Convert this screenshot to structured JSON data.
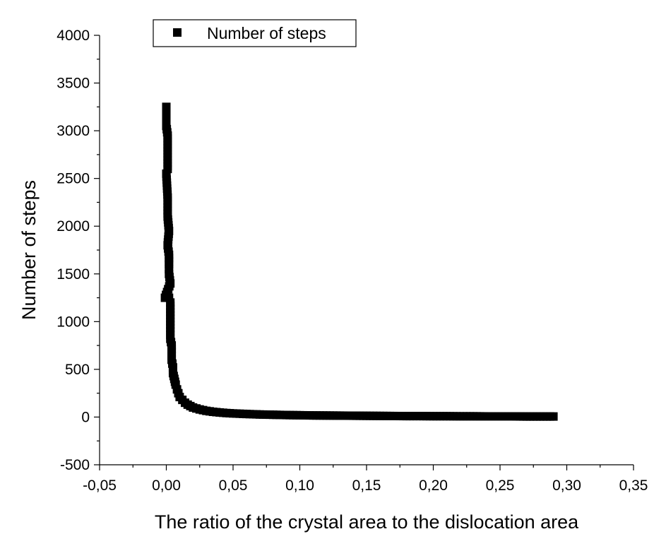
{
  "chart_data": {
    "type": "scatter",
    "title": "",
    "xlabel": "The ratio of the crystal area to the dislocation area",
    "ylabel": "Number of steps",
    "xlim": [
      -0.05,
      0.35
    ],
    "ylim": [
      -500,
      4000
    ],
    "xticks": [
      -0.05,
      0.0,
      0.05,
      0.1,
      0.15,
      0.2,
      0.25,
      0.3,
      0.35
    ],
    "xtick_labels": [
      "-0,05",
      "0,00",
      "0,05",
      "0,10",
      "0,15",
      "0,20",
      "0,25",
      "0,30",
      "0,35"
    ],
    "yticks": [
      -500,
      0,
      500,
      1000,
      1500,
      2000,
      2500,
      3000,
      3500,
      4000
    ],
    "ytick_labels": [
      "-500",
      "0",
      "500",
      "1000",
      "1500",
      "2000",
      "2500",
      "3000",
      "3500",
      "4000"
    ],
    "grid": false,
    "legend_position": "top-left",
    "marker": "square",
    "color": "#000000",
    "series": [
      {
        "name": "Number of steps",
        "points": [
          [
            0.0,
            3250
          ],
          [
            0.0,
            3050
          ],
          [
            0.001,
            2950
          ],
          [
            0.001,
            2600
          ],
          [
            0.0,
            2550
          ],
          [
            0.001,
            2300
          ],
          [
            0.001,
            2200
          ],
          [
            0.001,
            2100
          ],
          [
            0.002,
            1950
          ],
          [
            0.001,
            1800
          ],
          [
            0.002,
            1700
          ],
          [
            0.002,
            1600
          ],
          [
            0.002,
            1550
          ],
          [
            0.002,
            1500
          ],
          [
            0.003,
            1400
          ],
          [
            -0.001,
            1250
          ],
          [
            0.002,
            1250
          ],
          [
            0.003,
            1200
          ],
          [
            0.003,
            1100
          ],
          [
            0.003,
            1000
          ],
          [
            0.003,
            900
          ],
          [
            0.003,
            820
          ],
          [
            0.004,
            750
          ],
          [
            0.004,
            680
          ],
          [
            0.004,
            600
          ],
          [
            0.005,
            520
          ],
          [
            0.005,
            460
          ],
          [
            0.006,
            400
          ],
          [
            0.007,
            340
          ],
          [
            0.008,
            290
          ],
          [
            0.009,
            250
          ],
          [
            0.01,
            210
          ],
          [
            0.012,
            180
          ],
          [
            0.014,
            150
          ],
          [
            0.016,
            130
          ],
          [
            0.018,
            115
          ],
          [
            0.02,
            100
          ],
          [
            0.025,
            80
          ],
          [
            0.03,
            65
          ],
          [
            0.035,
            55
          ],
          [
            0.04,
            48
          ],
          [
            0.045,
            42
          ],
          [
            0.05,
            38
          ],
          [
            0.06,
            32
          ],
          [
            0.07,
            27
          ],
          [
            0.08,
            24
          ],
          [
            0.09,
            21
          ],
          [
            0.1,
            19
          ],
          [
            0.11,
            17
          ],
          [
            0.12,
            16
          ],
          [
            0.13,
            15
          ],
          [
            0.14,
            14
          ],
          [
            0.15,
            13
          ],
          [
            0.16,
            12
          ],
          [
            0.17,
            11
          ],
          [
            0.18,
            10
          ],
          [
            0.19,
            10
          ],
          [
            0.2,
            9
          ],
          [
            0.21,
            9
          ],
          [
            0.22,
            8
          ],
          [
            0.23,
            8
          ],
          [
            0.24,
            7
          ],
          [
            0.25,
            7
          ],
          [
            0.26,
            7
          ],
          [
            0.27,
            6
          ],
          [
            0.28,
            6
          ],
          [
            0.29,
            6
          ]
        ]
      }
    ]
  }
}
